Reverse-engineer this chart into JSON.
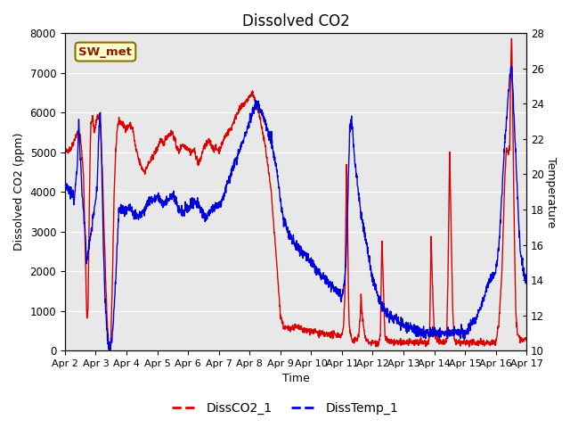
{
  "title": "Dissolved CO2",
  "ylabel_left": "Dissolved CO2 (ppm)",
  "ylabel_right": "Temperature",
  "xlabel": "Time",
  "ylim_left": [
    0,
    8000
  ],
  "ylim_right": [
    10,
    28
  ],
  "xlim": [
    0,
    15
  ],
  "xtick_labels": [
    "Apr 2",
    "Apr 3",
    "Apr 4",
    "Apr 5",
    "Apr 6",
    "Apr 7",
    "Apr 8",
    "Apr 9",
    "Apr 10",
    "Apr 11",
    "Apr 12",
    "Apr 13",
    "Apr 14",
    "Apr 15",
    "Apr 16",
    "Apr 17"
  ],
  "xtick_positions": [
    0,
    1,
    2,
    3,
    4,
    5,
    6,
    7,
    8,
    9,
    10,
    11,
    12,
    13,
    14,
    15
  ],
  "label_box_text": "SW_met",
  "legend_entries": [
    "DissCO2_1",
    "DissTemp_1"
  ],
  "co2_color": "#dd0000",
  "temp_color": "#0000dd",
  "background_color": "#e8e8e8",
  "grid_color": "#ffffff",
  "title_fontsize": 12,
  "axis_fontsize": 9,
  "tick_fontsize": 8.5
}
